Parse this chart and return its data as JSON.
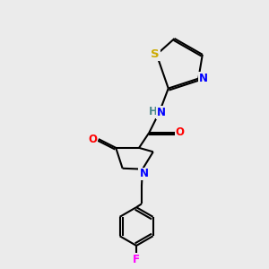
{
  "bg_color": "#ebebeb",
  "bond_color": "#000000",
  "bond_width": 1.5,
  "atoms": {
    "S": {
      "color": "#ccaa00"
    },
    "N": {
      "color": "#0000ff"
    },
    "O": {
      "color": "#ff0000"
    },
    "F": {
      "color": "#ff00ff"
    },
    "H": {
      "color": "#4a8888"
    }
  },
  "font_size": 8.5,
  "fig_size": [
    3.0,
    3.0
  ],
  "dpi": 100
}
